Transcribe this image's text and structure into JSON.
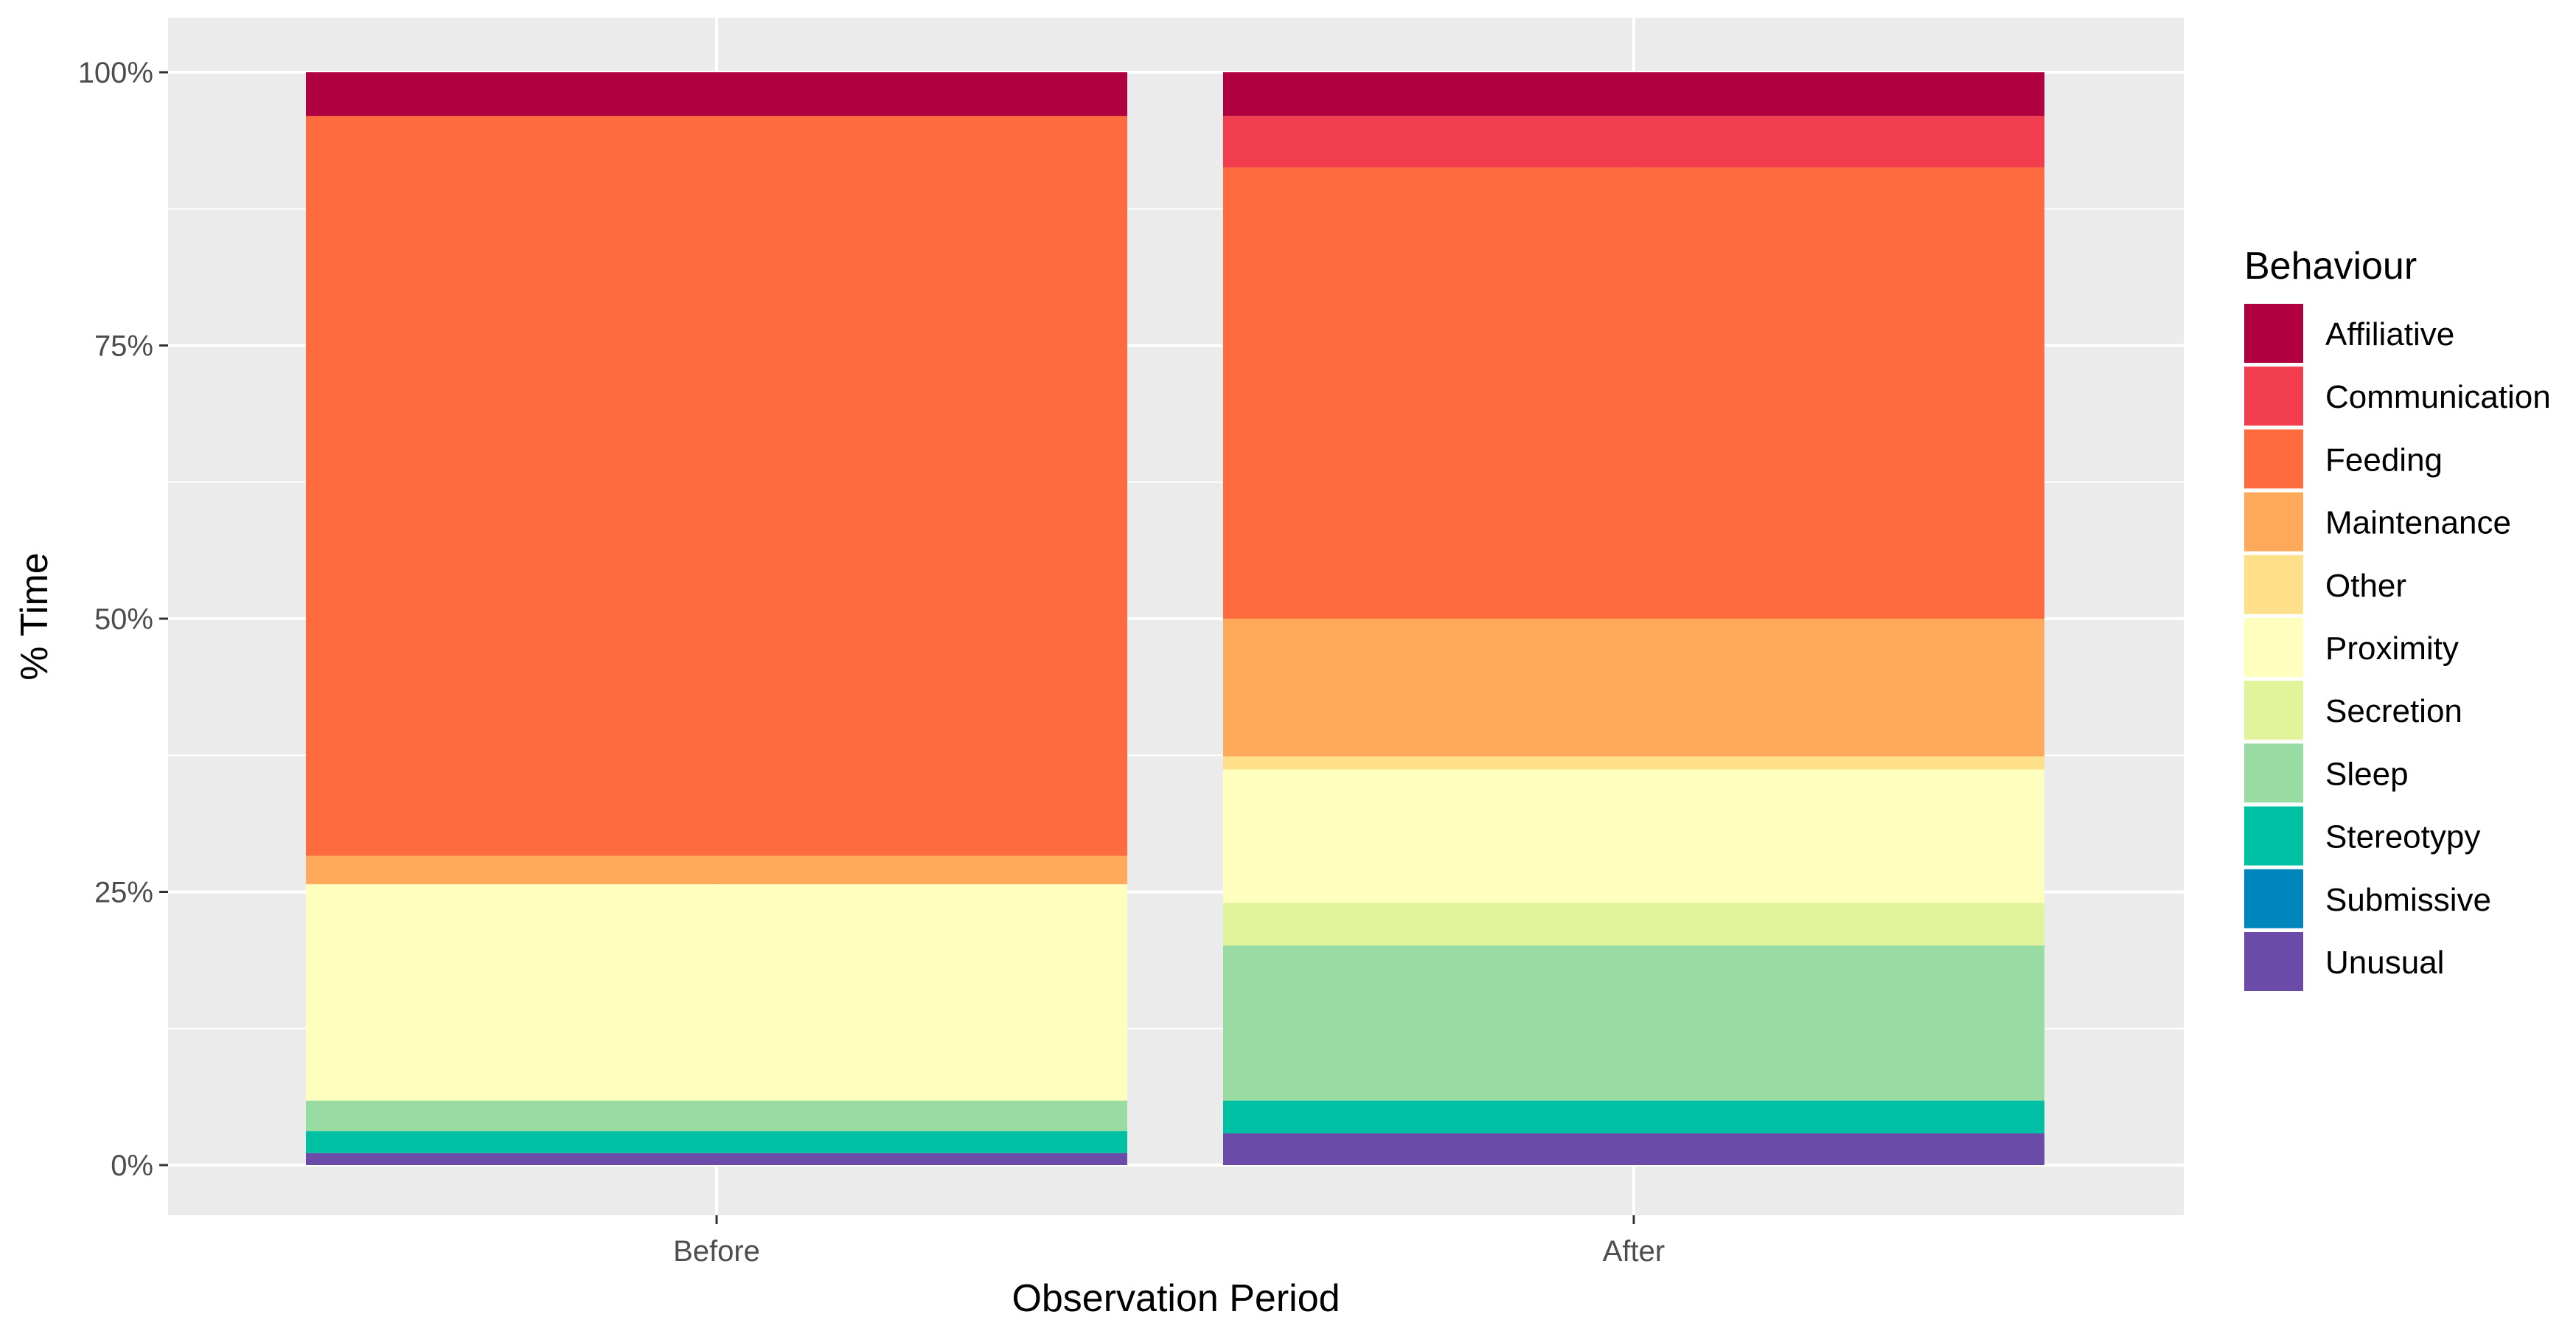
{
  "chart_data": {
    "type": "bar",
    "stacked": true,
    "xlabel": "Observation Period",
    "ylabel": "% Time",
    "ylim": [
      0,
      100
    ],
    "yticks": [
      0,
      25,
      50,
      75,
      100
    ],
    "ytick_labels": [
      "0%",
      "25%",
      "50%",
      "75%",
      "100%"
    ],
    "categories": [
      "Before",
      "After"
    ],
    "grid": true,
    "legend": {
      "title": "Behaviour",
      "position": "right"
    },
    "series": [
      {
        "name": "Affiliative",
        "color": "#B0003F",
        "values": [
          4,
          4
        ]
      },
      {
        "name": "Communication",
        "color": "#F23D4F",
        "values": [
          0,
          4.7
        ]
      },
      {
        "name": "Feeding",
        "color": "#FE6B3E",
        "values": [
          67.7,
          41.3
        ]
      },
      {
        "name": "Maintenance",
        "color": "#FEAA5A",
        "values": [
          2.6,
          12.6
        ]
      },
      {
        "name": "Other",
        "color": "#FEE08B",
        "values": [
          0,
          1.2
        ]
      },
      {
        "name": "Proximity",
        "color": "#FEFEBE",
        "values": [
          19.8,
          12.2
        ]
      },
      {
        "name": "Secretion",
        "color": "#E1F39B",
        "values": [
          0,
          3.9
        ]
      },
      {
        "name": "Sleep",
        "color": "#99DCA3",
        "values": [
          2.8,
          14.2
        ]
      },
      {
        "name": "Stereotypy",
        "color": "#00C0A4",
        "values": [
          2,
          3
        ]
      },
      {
        "name": "Submissive",
        "color": "#0085BC",
        "values": [
          0,
          0
        ]
      },
      {
        "name": "Unusual",
        "color": "#6A4CA8",
        "values": [
          1.1,
          2.9
        ]
      }
    ]
  }
}
